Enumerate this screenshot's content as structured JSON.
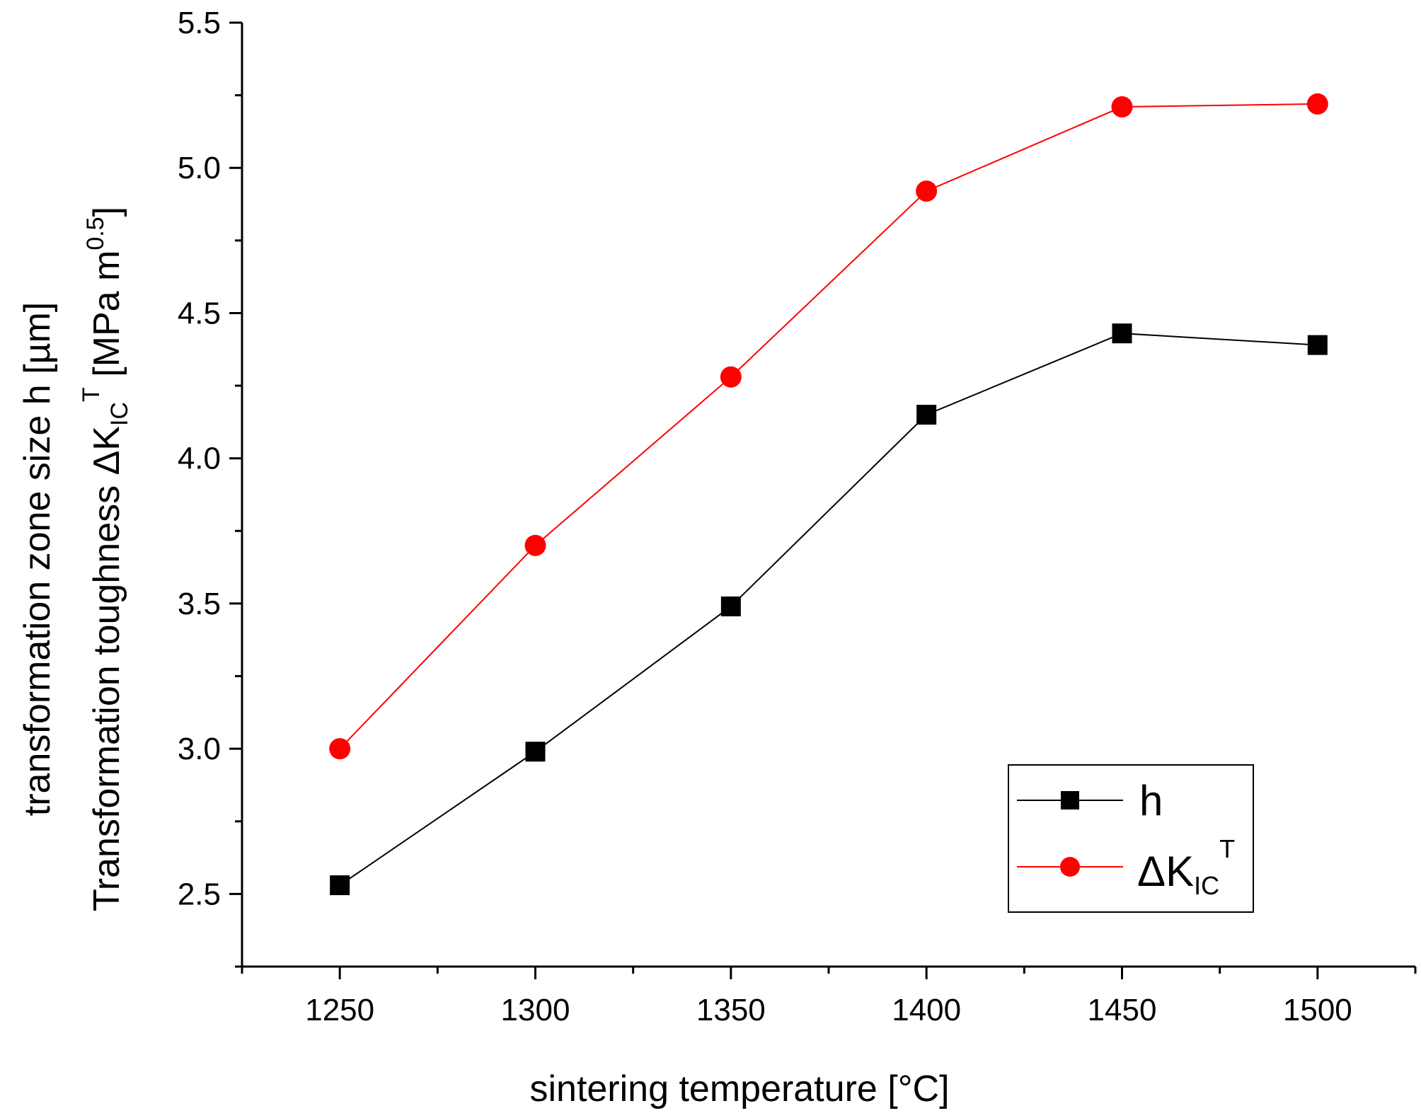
{
  "chart_data": {
    "type": "line",
    "x": [
      1250,
      1300,
      1350,
      1400,
      1450,
      1500
    ],
    "series": [
      {
        "name": "h",
        "legend_label": "h",
        "marker": "square",
        "color": "#000000",
        "values": [
          2.53,
          2.99,
          3.49,
          4.15,
          4.43,
          4.39
        ]
      },
      {
        "name": "ΔK_IC^T",
        "legend_label": "ΔK",
        "legend_sub": "IC",
        "legend_sup": "T",
        "marker": "circle",
        "color": "#ff0000",
        "values": [
          3.0,
          3.7,
          4.28,
          4.92,
          5.21,
          5.22
        ]
      }
    ],
    "xlim": [
      1225,
      1525
    ],
    "ylim": [
      2.25,
      5.5
    ],
    "x_major_ticks": [
      "1250",
      "1300",
      "1350",
      "1400",
      "1450",
      "1500"
    ],
    "y_major_ticks": [
      "2.5",
      "3.0",
      "3.5",
      "4.0",
      "4.5",
      "5.0",
      "5.5"
    ],
    "xlabel": "sintering temperature [°C]",
    "ylabel_line1": "transformation zone size h [µm]",
    "ylabel_line2_main": "Transformation toughness ΔK",
    "ylabel_line2_sub": "IC",
    "ylabel_line2_sup": "T",
    "ylabel_line2_tail": " [MPa m",
    "ylabel_line2_exp": "0.5",
    "ylabel_line2_end": "]",
    "legend_position": "bottom-right",
    "grid": false
  }
}
